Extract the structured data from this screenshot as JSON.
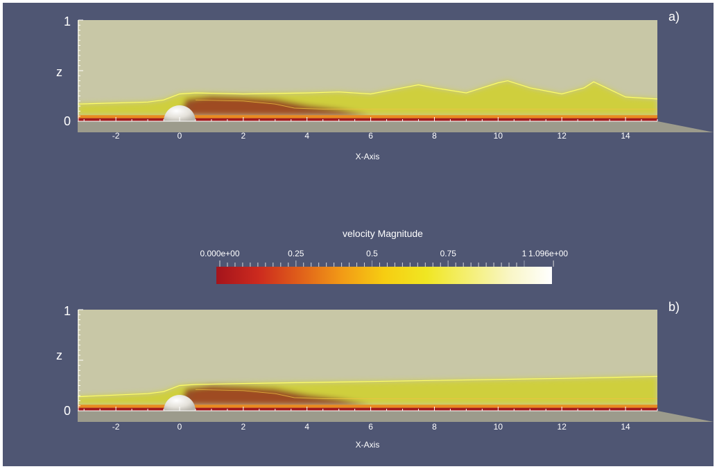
{
  "colors": {
    "background": "#4f5673",
    "plot_fill": "#c8c7a6",
    "ground": "#9c9b8c",
    "text": "#ffffff",
    "contour": "#ffff66",
    "obstacle": "#e9e6e0"
  },
  "colorbar": {
    "title": "velocity Magnitude",
    "range_min_label": "0.000e+00",
    "range_max_label": "1.096e+00",
    "tick_labels": [
      "0.25",
      "0.5",
      "0.75",
      "1"
    ],
    "range": [
      0,
      1.096
    ],
    "colormap": [
      "#a4141c",
      "#cc2a1e",
      "#e0601a",
      "#f29b16",
      "#f6cd12",
      "#f0e622",
      "#f4ef72",
      "#f9f6c6",
      "#ffffff"
    ]
  },
  "chart_data": [
    {
      "type": "heatmap",
      "panel_label": "a)",
      "xlabel": "X-Axis",
      "ylabel": "z",
      "x_ticks": [
        -2,
        0,
        2,
        4,
        6,
        8,
        10,
        12,
        14
      ],
      "y_ticks": [
        0,
        1
      ],
      "xlim": [
        -3.2,
        15
      ],
      "ylim": [
        0,
        1
      ],
      "field": "velocity Magnitude",
      "jet_top_contour": {
        "x": [
          -3.2,
          -1,
          -0.5,
          0,
          0.5,
          2,
          4,
          5,
          6,
          7,
          7.5,
          8,
          9,
          10,
          10.3,
          11,
          12,
          12.7,
          13,
          13.4,
          14,
          15
        ],
        "z": [
          0.17,
          0.19,
          0.21,
          0.27,
          0.28,
          0.27,
          0.28,
          0.29,
          0.27,
          0.33,
          0.36,
          0.33,
          0.28,
          0.38,
          0.4,
          0.33,
          0.27,
          0.33,
          0.39,
          0.33,
          0.24,
          0.22
        ]
      }
    },
    {
      "type": "heatmap",
      "panel_label": "b)",
      "xlabel": "X-Axis",
      "ylabel": "z",
      "x_ticks": [
        -2,
        0,
        2,
        4,
        6,
        8,
        10,
        12,
        14
      ],
      "y_ticks": [
        0,
        1
      ],
      "xlim": [
        -3.2,
        15
      ],
      "ylim": [
        0,
        1
      ],
      "field": "velocity Magnitude",
      "jet_top_contour": {
        "x": [
          -3.2,
          -1,
          -0.5,
          0,
          0.5,
          2,
          4,
          6,
          8,
          10,
          12,
          15
        ],
        "z": [
          0.14,
          0.17,
          0.19,
          0.25,
          0.26,
          0.27,
          0.28,
          0.29,
          0.3,
          0.31,
          0.32,
          0.34
        ]
      }
    }
  ]
}
